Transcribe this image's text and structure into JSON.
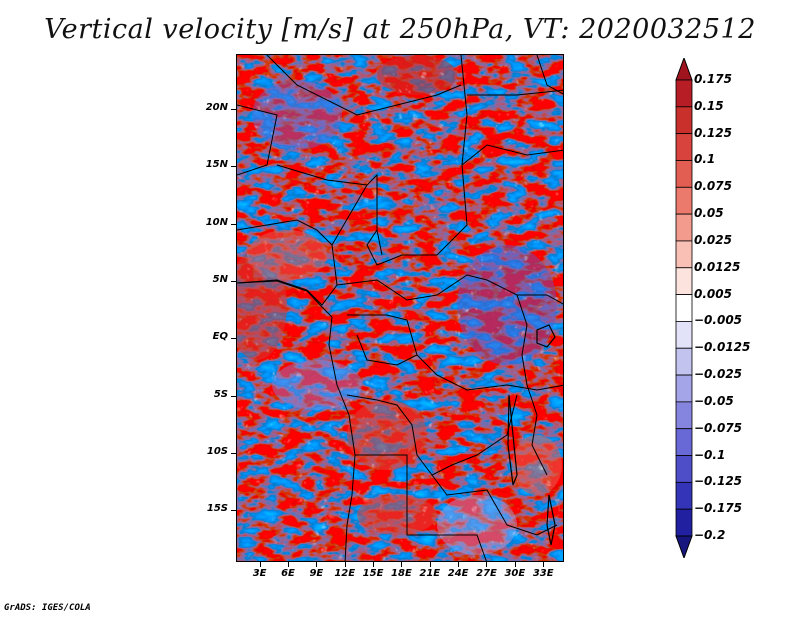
{
  "title": "Vertical velocity [m/s] at 250hPa, VT: 2020032512",
  "credit": "GrADS: IGES/COLA",
  "map": {
    "region": "Central Africa",
    "variable": "Vertical velocity",
    "units": "m/s",
    "level": "250hPa",
    "valid_time": "2020032512",
    "lat_labels": [
      "20N",
      "15N",
      "10N",
      "5N",
      "EQ",
      "5S",
      "10S",
      "15S"
    ],
    "lat_values": [
      20,
      15,
      10,
      5,
      0,
      -5,
      -10,
      -15
    ],
    "lon_labels": [
      "3E",
      "6E",
      "9E",
      "12E",
      "15E",
      "18E",
      "21E",
      "24E",
      "27E",
      "30E",
      "33E"
    ],
    "lon_values": [
      3,
      6,
      9,
      12,
      15,
      18,
      21,
      24,
      27,
      30,
      33
    ],
    "lat_range": [
      -19.5,
      24.8
    ],
    "lon_range": [
      0.5,
      35.2
    ]
  },
  "colorbar": {
    "levels": [
      "0.175",
      "0.15",
      "0.125",
      "0.1",
      "0.075",
      "0.05",
      "0.025",
      "0.0125",
      "0.005",
      "−0.005",
      "−0.0125",
      "−0.025",
      "−0.05",
      "−0.075",
      "−0.1",
      "−0.125",
      "−0.175",
      "−0.2"
    ],
    "colors": [
      "#a0141e",
      "#b61d24",
      "#c9302c",
      "#d8443d",
      "#e35e52",
      "#ec7a6c",
      "#f39b8d",
      "#f9c0b6",
      "#fde3de",
      "#ffffff",
      "#e2e2f8",
      "#c3c3f0",
      "#a4a4e9",
      "#8585e0",
      "#6868d6",
      "#4e4ec9",
      "#3434b8",
      "#2020a0",
      "#16167e"
    ]
  }
}
